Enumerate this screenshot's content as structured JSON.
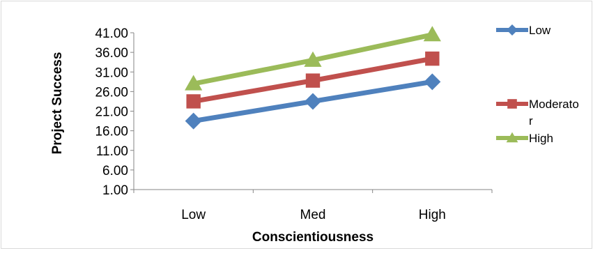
{
  "chart_data": {
    "type": "line",
    "categories": [
      "Low",
      "Med",
      "High"
    ],
    "xlabel": "Conscientiousness",
    "ylabel": "Project Success",
    "ylim": [
      1,
      41
    ],
    "yticks": [
      "1.00",
      "6.00",
      "11.00",
      "16.00",
      "21.00",
      "26.00",
      "31.00",
      "36.00",
      "41.00"
    ],
    "grid": false,
    "legend_position": "right",
    "series": [
      {
        "name": "Low",
        "values": [
          18.5,
          23.5,
          28.5
        ],
        "color": "#4F81BD",
        "marker": "diamond"
      },
      {
        "name": "Moderato r",
        "legend_lines": [
          "Moderato",
          "r"
        ],
        "values": [
          23.5,
          28.8,
          34.4
        ],
        "color": "#C0504D",
        "marker": "square"
      },
      {
        "name": "High",
        "values": [
          28.0,
          34.0,
          40.5
        ],
        "color": "#9BBB59",
        "marker": "triangle"
      }
    ]
  }
}
